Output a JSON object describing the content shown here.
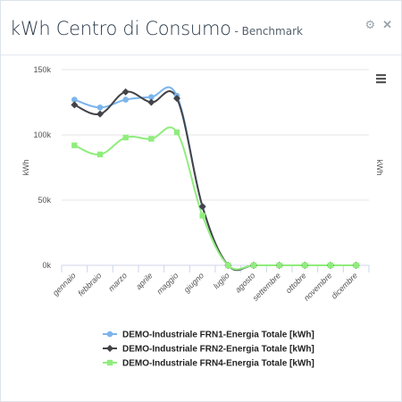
{
  "header": {
    "title": "kWh Centro di Consumo",
    "subtitle": " - Benchmark",
    "settings_icon": "gear-icon",
    "close_icon": "close-icon"
  },
  "chart_menu_icon": "hamburger-menu-icon",
  "chart_data": {
    "type": "line",
    "title": "",
    "ylabel": "kWh",
    "ylabel_right": "kWh",
    "ylim": [
      0,
      150000
    ],
    "yticks": [
      0,
      50000,
      100000,
      150000
    ],
    "ytick_labels": [
      "0k",
      "50k",
      "100k",
      "150k"
    ],
    "grid": true,
    "legend_position": "bottom-center",
    "categories": [
      "gennaio",
      "febbraio",
      "marzo",
      "aprile",
      "maggio",
      "giugno",
      "luglio",
      "agosto",
      "settembre",
      "ottobre",
      "novembre",
      "dicembre"
    ],
    "series": [
      {
        "name": "DEMO-Industriale FRN1-Energia Totale [kWh]",
        "color": "#7cb5ec",
        "marker": "circle",
        "values": [
          127000,
          121000,
          127000,
          129000,
          130000,
          45000,
          0,
          0,
          0,
          0,
          0,
          0
        ]
      },
      {
        "name": "DEMO-Industriale FRN2-Energia Totale [kWh]",
        "color": "#434348",
        "marker": "diamond",
        "values": [
          123000,
          116000,
          133000,
          125000,
          128000,
          45000,
          0,
          0,
          0,
          0,
          0,
          0
        ]
      },
      {
        "name": "DEMO-Industriale FRN4-Energia Totale [kWh]",
        "color": "#90ed7d",
        "marker": "square",
        "values": [
          92000,
          85000,
          98000,
          97000,
          102000,
          38000,
          0,
          0,
          0,
          0,
          0,
          0
        ]
      }
    ]
  }
}
